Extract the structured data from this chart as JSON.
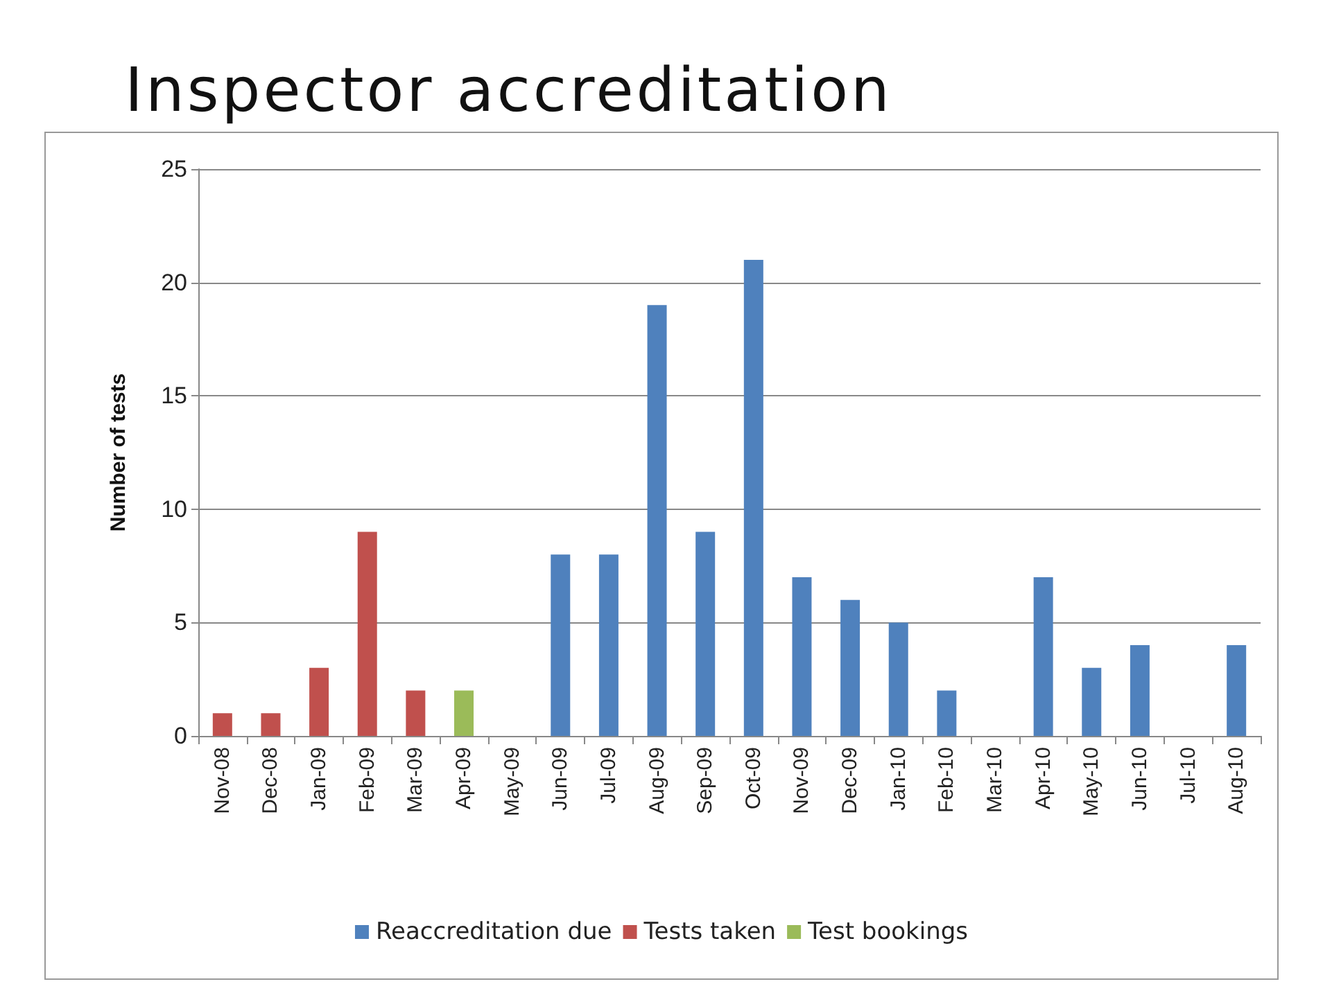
{
  "chart_data": {
    "type": "bar",
    "title": "Inspector accreditation",
    "ylabel": "Number of tests",
    "categories": [
      "Nov-08",
      "Dec-08",
      "Jan-09",
      "Feb-09",
      "Mar-09",
      "Apr-09",
      "May-09",
      "Jun-09",
      "Jul-09",
      "Aug-09",
      "Sep-09",
      "Oct-09",
      "Nov-09",
      "Dec-09",
      "Jan-10",
      "Feb-10",
      "Mar-10",
      "Apr-10",
      "May-10",
      "Jun-10",
      "Jul-10",
      "Aug-10"
    ],
    "series": [
      {
        "name": "Reaccreditation due",
        "color": "#4f81bd",
        "values": [
          null,
          null,
          null,
          null,
          null,
          null,
          null,
          8,
          8,
          19,
          9,
          21,
          7,
          6,
          5,
          2,
          null,
          7,
          3,
          4,
          null,
          4
        ]
      },
      {
        "name": "Tests taken",
        "color": "#c0504d",
        "values": [
          1,
          1,
          3,
          9,
          2,
          null,
          null,
          null,
          null,
          null,
          null,
          null,
          null,
          null,
          null,
          null,
          null,
          null,
          null,
          null,
          null,
          null
        ]
      },
      {
        "name": "Test bookings",
        "color": "#9bbb59",
        "values": [
          null,
          null,
          null,
          null,
          null,
          2,
          null,
          null,
          null,
          null,
          null,
          null,
          null,
          null,
          null,
          null,
          null,
          null,
          null,
          null,
          null,
          null
        ]
      }
    ],
    "stacked": true,
    "ylim": [
      0,
      25
    ],
    "yticks": [
      0,
      5,
      10,
      15,
      20,
      25
    ],
    "grid": "y",
    "legend": "bottom"
  }
}
